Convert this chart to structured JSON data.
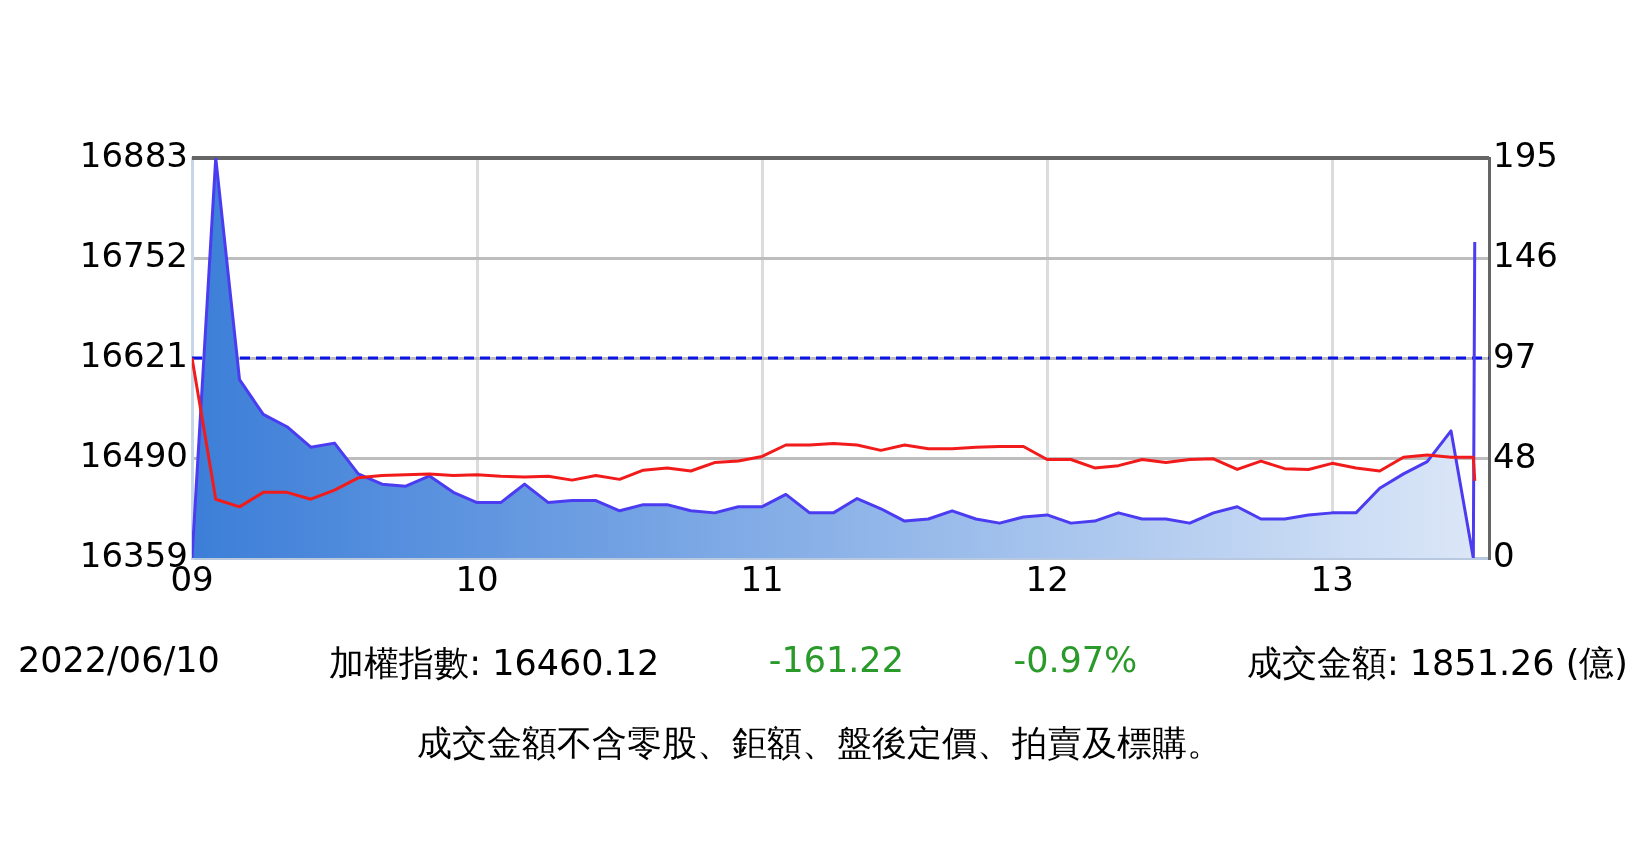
{
  "chart_data": {
    "type": "line",
    "x": [
      9,
      9.0833,
      9.1667,
      9.25,
      9.3333,
      9.4167,
      9.5,
      9.5833,
      9.6667,
      9.75,
      9.8333,
      9.9167,
      10,
      10.0833,
      10.1667,
      10.25,
      10.3333,
      10.4167,
      10.5,
      10.5833,
      10.6667,
      10.75,
      10.8333,
      10.9167,
      11,
      11.0833,
      11.1667,
      11.25,
      11.3333,
      11.4167,
      11.5,
      11.5833,
      11.6667,
      11.75,
      11.8333,
      11.9167,
      12,
      12.0833,
      12.1667,
      12.25,
      12.3333,
      12.4167,
      12.5,
      12.5833,
      12.6667,
      12.75,
      12.8333,
      12.9167,
      13,
      13.0833,
      13.1667,
      13.25,
      13.3333,
      13.4167,
      13.495,
      13.5
    ],
    "series": [
      {
        "type": "area",
        "axis": "y2",
        "color": "#4b3cf2",
        "values": [
          0,
          195,
          87,
          70,
          64,
          54,
          56,
          41,
          36,
          35,
          40,
          32,
          27,
          27,
          36,
          27,
          28,
          28,
          23,
          26,
          26,
          23,
          22,
          25,
          25,
          31,
          22,
          22,
          29,
          24,
          18,
          19,
          23,
          19,
          17,
          20,
          21,
          17,
          18,
          22,
          19,
          19,
          17,
          22,
          25,
          19,
          19,
          21,
          22,
          22,
          34,
          41,
          47,
          62,
          0,
          154
        ]
      },
      {
        "type": "line",
        "axis": "y",
        "color": "#f21b1b",
        "values": [
          16621,
          16436,
          16426,
          16445,
          16445,
          16436,
          16448,
          16464,
          16467,
          16468,
          16469,
          16467,
          16468,
          16466,
          16465,
          16466,
          16461,
          16467,
          16462,
          16474,
          16477,
          16473,
          16484,
          16486,
          16492,
          16507,
          16507,
          16509,
          16507,
          16500,
          16507,
          16502,
          16502,
          16504,
          16505,
          16505,
          16488,
          16488,
          16477,
          16480,
          16488,
          16484,
          16488,
          16489,
          16475,
          16486,
          16476,
          16475,
          16483,
          16477,
          16473,
          16491,
          16494,
          16491,
          16491,
          16460
        ]
      }
    ],
    "xlim": [
      9,
      13.55
    ],
    "xticks": [
      {
        "value": 9,
        "label": "09"
      },
      {
        "value": 10,
        "label": "10"
      },
      {
        "value": 11,
        "label": "11"
      },
      {
        "value": 12,
        "label": "12"
      },
      {
        "value": 13,
        "label": "13"
      }
    ],
    "ylim": [
      16359,
      16883
    ],
    "yticks": [
      16359,
      16490,
      16621,
      16752,
      16883
    ],
    "y2lim": [
      0,
      195
    ],
    "y2ticks": [
      0,
      48,
      97,
      146,
      195
    ],
    "grid": true,
    "marker": "none",
    "ref_lines": [
      {
        "axis": "y",
        "value": 16621,
        "color": "#0a14e6",
        "line_style": "dashed"
      }
    ],
    "annotations": [
      "2022/06/10",
      "加權指數: 16460.12",
      "-161.22",
      "-0.97%",
      "成交金額: 1851.26 (億)",
      "成交金額不含零股、鉅額、盤後定價、拍賣及標購。"
    ]
  }
}
